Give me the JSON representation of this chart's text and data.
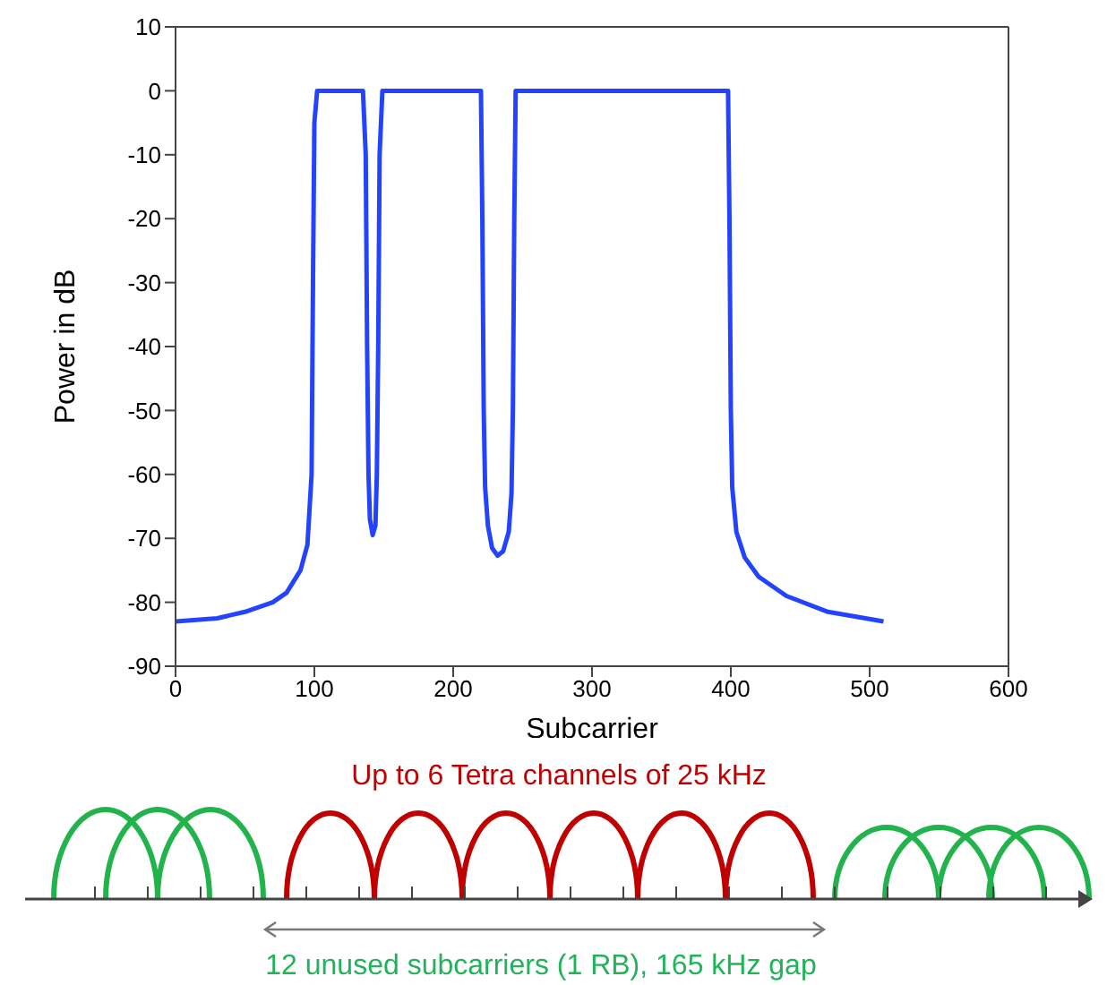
{
  "chart_data": {
    "type": "line",
    "xlabel": "Subcarrier",
    "ylabel": "Power in dB",
    "xlim": [
      0,
      600
    ],
    "ylim": [
      -90,
      10
    ],
    "xticks": [
      0,
      100,
      200,
      300,
      400,
      500,
      600
    ],
    "yticks": [
      -90,
      -80,
      -70,
      -60,
      -50,
      -40,
      -30,
      -20,
      -10,
      0,
      10
    ],
    "marker": "none",
    "line_style": "solid",
    "series": [
      {
        "color": "#2443ff",
        "x": [
          0,
          30,
          50,
          70,
          80,
          90,
          95,
          98,
          99,
          100,
          102,
          135,
          137,
          138,
          139,
          140,
          142,
          144,
          145,
          146,
          147,
          149,
          220,
          221,
          222,
          223,
          225,
          228,
          232,
          236,
          240,
          242,
          243,
          244,
          245,
          398,
          399,
          400,
          401,
          404,
          410,
          420,
          440,
          470,
          510
        ],
        "values": [
          -83,
          -82.5,
          -81.5,
          -80,
          -78.5,
          -75,
          -71,
          -60,
          -30,
          -5,
          0,
          0,
          -10,
          -40,
          -60,
          -67,
          -69.5,
          -68,
          -60,
          -40,
          -10,
          0,
          0,
          -20,
          -50,
          -62,
          -68,
          -71.5,
          -72.7,
          -72,
          -69,
          -63,
          -50,
          -20,
          0,
          0,
          -20,
          -50,
          -62,
          -69,
          -73,
          -76,
          -79,
          -81.5,
          -83
        ]
      }
    ],
    "annotations": [
      "Up to 6 Tetra channels of 25 kHz",
      "12 unused subcarriers (1 RB), 165 kHz gap"
    ]
  }
}
